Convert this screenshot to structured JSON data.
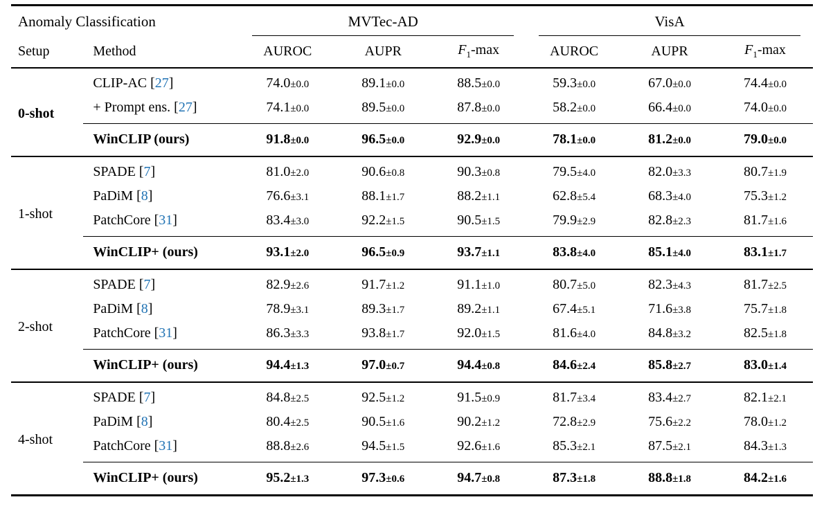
{
  "page": {
    "background": "#ffffff"
  },
  "table": {
    "colors": {
      "citation": "#2173b4",
      "text": "#000000",
      "rule": "#000000"
    },
    "header": {
      "title": "Anomaly Classification",
      "setup_label": "Setup",
      "method_label": "Method",
      "dataset_groups": [
        "MVTec-AD",
        "VisA"
      ],
      "metric_labels": [
        "AUROC",
        "AUPR",
        "F1-max",
        "AUROC",
        "AUPR",
        "F1-max"
      ]
    },
    "groups": [
      {
        "setup": "0-shot",
        "setup_bold": true,
        "rows": [
          {
            "method": "CLIP-AC",
            "cite": "27",
            "values": [
              "74.0±0.0",
              "89.1±0.0",
              "88.5±0.0",
              "59.3±0.0",
              "67.0±0.0",
              "74.4±0.0"
            ]
          },
          {
            "method": "+ Prompt ens.",
            "cite": "27",
            "values": [
              "74.1±0.0",
              "89.5±0.0",
              "87.8±0.0",
              "58.2±0.0",
              "66.4±0.0",
              "74.0±0.0"
            ]
          }
        ],
        "highlight_row": {
          "method": "WinCLIP (ours)",
          "values": [
            "91.8±0.0",
            "96.5±0.0",
            "92.9±0.0",
            "78.1±0.0",
            "81.2±0.0",
            "79.0±0.0"
          ]
        }
      },
      {
        "setup": "1-shot",
        "setup_bold": false,
        "rows": [
          {
            "method": "SPADE",
            "cite": "7",
            "values": [
              "81.0±2.0",
              "90.6±0.8",
              "90.3±0.8",
              "79.5±4.0",
              "82.0±3.3",
              "80.7±1.9"
            ]
          },
          {
            "method": "PaDiM",
            "cite": "8",
            "values": [
              "76.6±3.1",
              "88.1±1.7",
              "88.2±1.1",
              "62.8±5.4",
              "68.3±4.0",
              "75.3±1.2"
            ]
          },
          {
            "method": "PatchCore",
            "cite": "31",
            "values": [
              "83.4±3.0",
              "92.2±1.5",
              "90.5±1.5",
              "79.9±2.9",
              "82.8±2.3",
              "81.7±1.6"
            ]
          }
        ],
        "highlight_row": {
          "method": "WinCLIP+ (ours)",
          "values": [
            "93.1±2.0",
            "96.5±0.9",
            "93.7±1.1",
            "83.8±4.0",
            "85.1±4.0",
            "83.1±1.7"
          ]
        }
      },
      {
        "setup": "2-shot",
        "setup_bold": false,
        "rows": [
          {
            "method": "SPADE",
            "cite": "7",
            "values": [
              "82.9±2.6",
              "91.7±1.2",
              "91.1±1.0",
              "80.7±5.0",
              "82.3±4.3",
              "81.7±2.5"
            ]
          },
          {
            "method": "PaDiM",
            "cite": "8",
            "values": [
              "78.9±3.1",
              "89.3±1.7",
              "89.2±1.1",
              "67.4±5.1",
              "71.6±3.8",
              "75.7±1.8"
            ]
          },
          {
            "method": "PatchCore",
            "cite": "31",
            "values": [
              "86.3±3.3",
              "93.8±1.7",
              "92.0±1.5",
              "81.6±4.0",
              "84.8±3.2",
              "82.5±1.8"
            ]
          }
        ],
        "highlight_row": {
          "method": "WinCLIP+ (ours)",
          "values": [
            "94.4±1.3",
            "97.0±0.7",
            "94.4±0.8",
            "84.6±2.4",
            "85.8±2.7",
            "83.0±1.4"
          ]
        }
      },
      {
        "setup": "4-shot",
        "setup_bold": false,
        "rows": [
          {
            "method": "SPADE",
            "cite": "7",
            "values": [
              "84.8±2.5",
              "92.5±1.2",
              "91.5±0.9",
              "81.7±3.4",
              "83.4±2.7",
              "82.1±2.1"
            ]
          },
          {
            "method": "PaDiM",
            "cite": "8",
            "values": [
              "80.4±2.5",
              "90.5±1.6",
              "90.2±1.2",
              "72.8±2.9",
              "75.6±2.2",
              "78.0±1.2"
            ]
          },
          {
            "method": "PatchCore",
            "cite": "31",
            "values": [
              "88.8±2.6",
              "94.5±1.5",
              "92.6±1.6",
              "85.3±2.1",
              "87.5±2.1",
              "84.3±1.3"
            ]
          }
        ],
        "highlight_row": {
          "method": "WinCLIP+ (ours)",
          "values": [
            "95.2±1.3",
            "97.3±0.6",
            "94.7±0.8",
            "87.3±1.8",
            "88.8±1.8",
            "84.2±1.6"
          ]
        }
      }
    ]
  }
}
